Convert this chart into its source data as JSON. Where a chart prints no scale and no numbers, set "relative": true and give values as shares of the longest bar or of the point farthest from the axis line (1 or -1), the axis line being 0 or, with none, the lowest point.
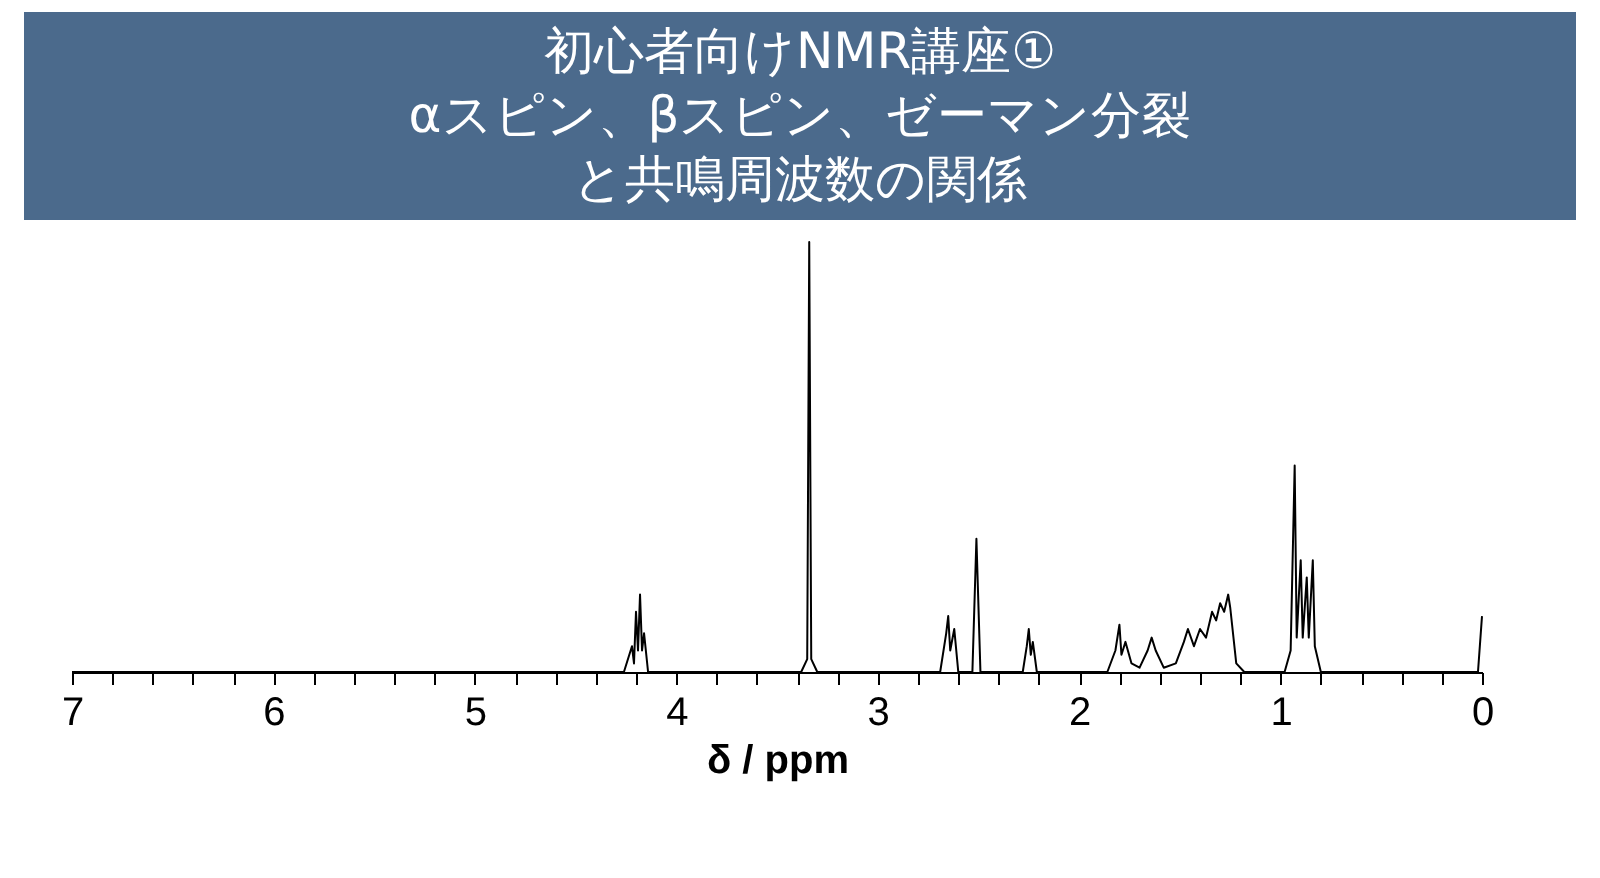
{
  "chart_data": {
    "type": "line",
    "title": "初心者向けNMR講座①",
    "subtitle": "αスピン、βスピン、ゼーマン分裂と共鳴周波数の関係",
    "xlabel": "δ / ppm",
    "relative": true,
    "tick_labels": "x",
    "grid": false,
    "marker": "none",
    "xlim": [
      7,
      0
    ],
    "xticks": [
      7,
      {
        "value": 6.8,
        "label": null
      },
      {
        "value": 6.6,
        "label": null
      },
      {
        "value": 6.4,
        "label": null
      },
      {
        "value": 6.2,
        "label": null
      },
      6,
      {
        "value": 5.8,
        "label": null
      },
      {
        "value": 5.6,
        "label": null
      },
      {
        "value": 5.4,
        "label": null
      },
      {
        "value": 5.2,
        "label": null
      },
      5,
      {
        "value": 4.8,
        "label": null
      },
      {
        "value": 4.6,
        "label": null
      },
      {
        "value": 4.4,
        "label": null
      },
      {
        "value": 4.2,
        "label": null
      },
      4,
      {
        "value": 3.8,
        "label": null
      },
      {
        "value": 3.6,
        "label": null
      },
      {
        "value": 3.4,
        "label": null
      },
      {
        "value": 3.2,
        "label": null
      },
      3,
      {
        "value": 2.8,
        "label": null
      },
      {
        "value": 2.6,
        "label": null
      },
      {
        "value": 2.4,
        "label": null
      },
      {
        "value": 2.2,
        "label": null
      },
      2,
      {
        "value": 1.8,
        "label": null
      },
      {
        "value": 1.6,
        "label": null
      },
      {
        "value": 1.4,
        "label": null
      },
      {
        "value": 1.2,
        "label": null
      },
      1,
      {
        "value": 0.8,
        "label": null
      },
      {
        "value": 0.6,
        "label": null
      },
      {
        "value": 0.4,
        "label": null
      },
      {
        "value": 0.2,
        "label": null
      },
      0
    ],
    "x": [
      7,
      4.26,
      4.22,
      4.21,
      4.2,
      4.19,
      4.18,
      4.17,
      4.16,
      4.14,
      3.38,
      3.35,
      3.34,
      3.33,
      3.3,
      2.69,
      2.66,
      2.65,
      2.64,
      2.62,
      2.6,
      2.53,
      2.51,
      2.49,
      2.28,
      2.26,
      2.25,
      2.24,
      2.23,
      2.21,
      1.86,
      1.82,
      1.8,
      1.79,
      1.77,
      1.74,
      1.7,
      1.66,
      1.64,
      1.62,
      1.58,
      1.52,
      1.48,
      1.46,
      1.43,
      1.4,
      1.37,
      1.34,
      1.32,
      1.3,
      1.28,
      1.26,
      1.25,
      1.22,
      1.18,
      0.98,
      0.95,
      0.93,
      0.92,
      0.9,
      0.89,
      0.87,
      0.86,
      0.84,
      0.83,
      0.8,
      0.02,
      0
    ],
    "series": [
      {
        "color": "#000000",
        "values": [
          0,
          0,
          0.06,
          0.02,
          0.14,
          0.05,
          0.18,
          0.05,
          0.09,
          0,
          0,
          0.03,
          1,
          0.03,
          0,
          0,
          0.09,
          0.13,
          0.05,
          0.1,
          0,
          0,
          0.31,
          0,
          0,
          0.06,
          0.1,
          0.04,
          0.07,
          0,
          0,
          0.05,
          0.11,
          0.04,
          0.07,
          0.02,
          0.01,
          0.05,
          0.08,
          0.05,
          0.01,
          0.02,
          0.07,
          0.1,
          0.06,
          0.1,
          0.08,
          0.14,
          0.12,
          0.16,
          0.14,
          0.18,
          0.15,
          0.02,
          0,
          0,
          0.05,
          0.48,
          0.08,
          0.26,
          0.08,
          0.22,
          0.08,
          0.26,
          0.06,
          0,
          0,
          0.13
        ]
      }
    ]
  }
}
